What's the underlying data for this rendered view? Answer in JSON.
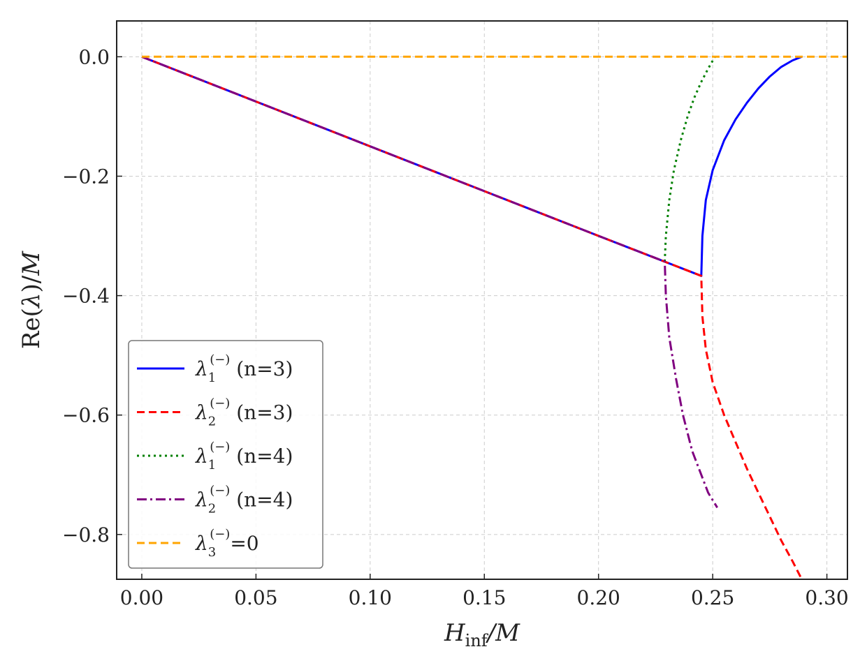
{
  "chart_data": {
    "type": "line",
    "xlabel": "H_inf/M",
    "ylabel": "Re(λ)/M",
    "xlim": [
      -0.011,
      0.309
    ],
    "ylim": [
      -0.875,
      0.06
    ],
    "xticks": [
      0.0,
      0.05,
      0.1,
      0.15,
      0.2,
      0.25,
      0.3
    ],
    "xtick_labels": [
      "0.00",
      "0.05",
      "0.10",
      "0.15",
      "0.20",
      "0.25",
      "0.30"
    ],
    "yticks": [
      0.0,
      -0.2,
      -0.4,
      -0.6,
      -0.8
    ],
    "ytick_labels": [
      "0.0",
      "−0.2",
      "−0.4",
      "−0.6",
      "−0.8"
    ],
    "grid": true,
    "legend_position": "lower-left",
    "series": [
      {
        "name": "λ1(−) (n=3)",
        "color": "#0000ff",
        "style": "solid",
        "points": [
          [
            0,
            0
          ],
          [
            0.05,
            -0.075
          ],
          [
            0.1,
            -0.15
          ],
          [
            0.15,
            -0.225
          ],
          [
            0.2,
            -0.3
          ],
          [
            0.245,
            -0.367
          ],
          [
            0.2455,
            -0.3
          ],
          [
            0.247,
            -0.24
          ],
          [
            0.25,
            -0.19
          ],
          [
            0.255,
            -0.14
          ],
          [
            0.26,
            -0.105
          ],
          [
            0.265,
            -0.077
          ],
          [
            0.27,
            -0.053
          ],
          [
            0.275,
            -0.033
          ],
          [
            0.28,
            -0.017
          ],
          [
            0.285,
            -0.006
          ],
          [
            0.289,
            0
          ]
        ]
      },
      {
        "name": "λ2(−) (n=3)",
        "color": "#ff0000",
        "style": "dashed",
        "points": [
          [
            0,
            0
          ],
          [
            0.05,
            -0.075
          ],
          [
            0.1,
            -0.15
          ],
          [
            0.15,
            -0.225
          ],
          [
            0.2,
            -0.3
          ],
          [
            0.245,
            -0.367
          ],
          [
            0.2455,
            -0.435
          ],
          [
            0.247,
            -0.49
          ],
          [
            0.25,
            -0.545
          ],
          [
            0.255,
            -0.6
          ],
          [
            0.26,
            -0.645
          ],
          [
            0.265,
            -0.69
          ],
          [
            0.27,
            -0.73
          ],
          [
            0.275,
            -0.77
          ],
          [
            0.28,
            -0.81
          ],
          [
            0.285,
            -0.845
          ],
          [
            0.289,
            -0.875
          ]
        ]
      },
      {
        "name": "λ1(−) (n=4)",
        "color": "#008000",
        "style": "dotted",
        "points": [
          [
            0.229,
            -0.343
          ],
          [
            0.2295,
            -0.3
          ],
          [
            0.231,
            -0.24
          ],
          [
            0.233,
            -0.19
          ],
          [
            0.236,
            -0.14
          ],
          [
            0.239,
            -0.1
          ],
          [
            0.242,
            -0.068
          ],
          [
            0.245,
            -0.042
          ],
          [
            0.248,
            -0.02
          ],
          [
            0.251,
            0
          ]
        ]
      },
      {
        "name": "λ2(−) (n=4)",
        "color": "#800080",
        "style": "dashdot",
        "points": [
          [
            0,
            0
          ],
          [
            0.05,
            -0.075
          ],
          [
            0.1,
            -0.15
          ],
          [
            0.15,
            -0.225
          ],
          [
            0.2,
            -0.3
          ],
          [
            0.229,
            -0.343
          ],
          [
            0.2295,
            -0.4
          ],
          [
            0.231,
            -0.47
          ],
          [
            0.234,
            -0.54
          ],
          [
            0.237,
            -0.6
          ],
          [
            0.241,
            -0.66
          ],
          [
            0.245,
            -0.7
          ],
          [
            0.248,
            -0.73
          ],
          [
            0.252,
            -0.755
          ]
        ]
      },
      {
        "name": "λ3(−)=0",
        "color": "#ffa500",
        "style": "dashed",
        "points": [
          [
            0,
            0
          ],
          [
            0.309,
            0
          ]
        ]
      }
    ],
    "legend": [
      {
        "sym": "λ",
        "sub": "1",
        "sup": "(−)",
        "rest": " (n=3)"
      },
      {
        "sym": "λ",
        "sub": "2",
        "sup": "(−)",
        "rest": " (n=3)"
      },
      {
        "sym": "λ",
        "sub": "1",
        "sup": "(−)",
        "rest": " (n=4)"
      },
      {
        "sym": "λ",
        "sub": "2",
        "sup": "(−)",
        "rest": " (n=4)"
      },
      {
        "sym": "λ",
        "sub": "3",
        "sup": "(−)",
        "rest": "=0"
      }
    ]
  }
}
